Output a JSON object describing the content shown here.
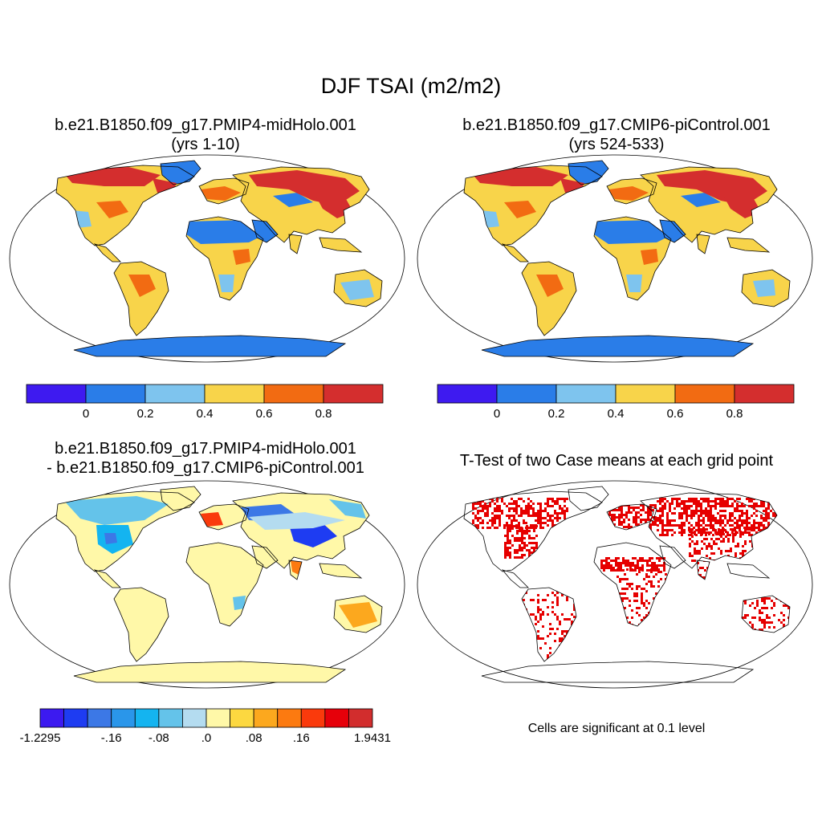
{
  "figure": {
    "title": "DJF TSAI (m2/m2)",
    "panels": [
      {
        "title_line1": "b.e21.B1850.f09_g17.PMIP4-midHolo.001",
        "title_line2": "(yrs 1-10)"
      },
      {
        "title_line1": "b.e21.B1850.f09_g17.CMIP6-piControl.001",
        "title_line2": "(yrs 524-533)"
      },
      {
        "title_line1": "b.e21.B1850.f09_g17.PMIP4-midHolo.001",
        "title_line2": "- b.e21.B1850.f09_g17.CMIP6-piControl.001"
      },
      {
        "title_line1": "T-Test of two Case means at each grid point",
        "note": "Cells are significant at 0.1 level"
      }
    ]
  },
  "colors": {
    "abs_bar": [
      "#3e1af0",
      "#2a7de8",
      "#7ec4ee",
      "#f8d44a",
      "#f26b12",
      "#d42e2e"
    ],
    "diff_bar": [
      "#3c1af0",
      "#1e3cf2",
      "#3c78e6",
      "#2a96ea",
      "#14b4f0",
      "#64c3ea",
      "#b4dcf0",
      "#fff8a8",
      "#fcd840",
      "#fca81e",
      "#fc7a10",
      "#fa3a0c",
      "#e6000a",
      "#d22d2d"
    ],
    "land_outline": "#000000",
    "significant": "#e60000"
  },
  "chart_data": [
    {
      "type": "heatmap",
      "title": "b.e21.B1850.f09_g17.PMIP4-midHolo.001 (yrs 1-10)",
      "projection": "Robinson",
      "colorbar_ticks": [
        "0",
        "0.2",
        "0.4",
        "0.6",
        "0.8"
      ],
      "levels": [
        0,
        0.2,
        0.4,
        0.6,
        0.8
      ],
      "regions": [
        {
          "name": "Antarctica",
          "value": 0.1
        },
        {
          "name": "Greenland",
          "value": 0.1
        },
        {
          "name": "Sahara",
          "value": 0.1
        },
        {
          "name": "Arabia",
          "value": 0.1
        },
        {
          "name": "Siberia",
          "value": 0.9
        },
        {
          "name": "Canada",
          "value": 0.9
        },
        {
          "name": "South America",
          "value": 0.5
        },
        {
          "name": "Southern Africa",
          "value": 0.5
        },
        {
          "name": "Australia interior",
          "value": 0.3
        }
      ]
    },
    {
      "type": "heatmap",
      "title": "b.e21.B1850.f09_g17.CMIP6-piControl.001 (yrs 524-533)",
      "projection": "Robinson",
      "colorbar_ticks": [
        "0",
        "0.2",
        "0.4",
        "0.6",
        "0.8"
      ],
      "levels": [
        0,
        0.2,
        0.4,
        0.6,
        0.8
      ],
      "regions": [
        {
          "name": "Antarctica",
          "value": 0.1
        },
        {
          "name": "Greenland",
          "value": 0.1
        },
        {
          "name": "Sahara",
          "value": 0.1
        },
        {
          "name": "Arabia",
          "value": 0.1
        },
        {
          "name": "Siberia",
          "value": 0.9
        },
        {
          "name": "Canada",
          "value": 0.9
        },
        {
          "name": "South America",
          "value": 0.5
        },
        {
          "name": "Southern Africa",
          "value": 0.5
        },
        {
          "name": "Australia interior",
          "value": 0.3
        }
      ]
    },
    {
      "type": "heatmap",
      "title": "b.e21.B1850.f09_g17.PMIP4-midHolo.001 - b.e21.B1850.f09_g17.CMIP6-piControl.001",
      "projection": "Robinson",
      "colorbar_ticks": [
        "-1.2295",
        "-.16",
        "-.08",
        ".0",
        ".08",
        ".16",
        "1.9431"
      ],
      "min": -1.2295,
      "max": 1.9431,
      "regions": [
        {
          "name": "Antarctica",
          "value": 0.0
        },
        {
          "name": "Greenland",
          "value": 0.0
        },
        {
          "name": "Sahara",
          "value": 0.0
        },
        {
          "name": "Eastern North America",
          "value": -0.08
        },
        {
          "name": "Western Europe",
          "value": 0.16
        },
        {
          "name": "Eastern Europe",
          "value": -0.16
        },
        {
          "name": "Central Asia",
          "value": -0.16
        },
        {
          "name": "Siberia",
          "value": -0.08
        },
        {
          "name": "India",
          "value": 0.16
        },
        {
          "name": "South America",
          "value": 0.0
        },
        {
          "name": "Southern Africa",
          "value": 0.04
        },
        {
          "name": "Australia",
          "value": 0.08
        }
      ]
    },
    {
      "type": "heatmap",
      "title": "T-Test of two Case means at each grid point",
      "projection": "Robinson",
      "significance_level": 0.1,
      "significant_regions": [
        "Eastern North America",
        "Alaska",
        "Europe",
        "Siberia",
        "Central Asia",
        "Sahel",
        "India",
        "East Asia",
        "South America",
        "Southern Africa",
        "Australia"
      ]
    }
  ]
}
